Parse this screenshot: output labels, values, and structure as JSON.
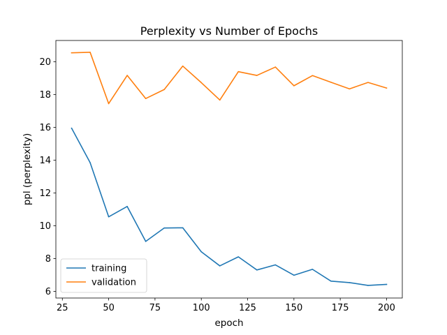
{
  "chart_data": {
    "type": "line",
    "title": "Perplexity vs Number of Epochs",
    "xlabel": "epoch",
    "ylabel": "ppl (perplexity)",
    "xlim": [
      21.5,
      208.5
    ],
    "ylim": [
      5.6,
      21.3
    ],
    "xticks": [
      25,
      50,
      75,
      100,
      125,
      150,
      175,
      200
    ],
    "yticks": [
      6,
      8,
      10,
      12,
      14,
      16,
      18,
      20
    ],
    "grid": false,
    "legend_position": "lower-left",
    "x": [
      30,
      40,
      50,
      60,
      70,
      80,
      90,
      100,
      110,
      120,
      130,
      140,
      150,
      160,
      170,
      180,
      190,
      200
    ],
    "series": [
      {
        "name": "training",
        "color": "#1f77b4",
        "values": [
          15.95,
          13.85,
          10.55,
          11.18,
          9.05,
          9.87,
          9.88,
          8.42,
          7.56,
          8.11,
          7.31,
          7.62,
          6.99,
          7.35,
          6.63,
          6.54,
          6.37,
          6.43
        ]
      },
      {
        "name": "validation",
        "color": "#ff7f0e",
        "values": [
          20.55,
          20.58,
          17.45,
          19.17,
          17.76,
          18.31,
          19.74,
          18.73,
          17.67,
          19.4,
          19.17,
          19.68,
          18.54,
          19.16,
          18.75,
          18.35,
          18.74,
          18.4
        ]
      }
    ]
  }
}
